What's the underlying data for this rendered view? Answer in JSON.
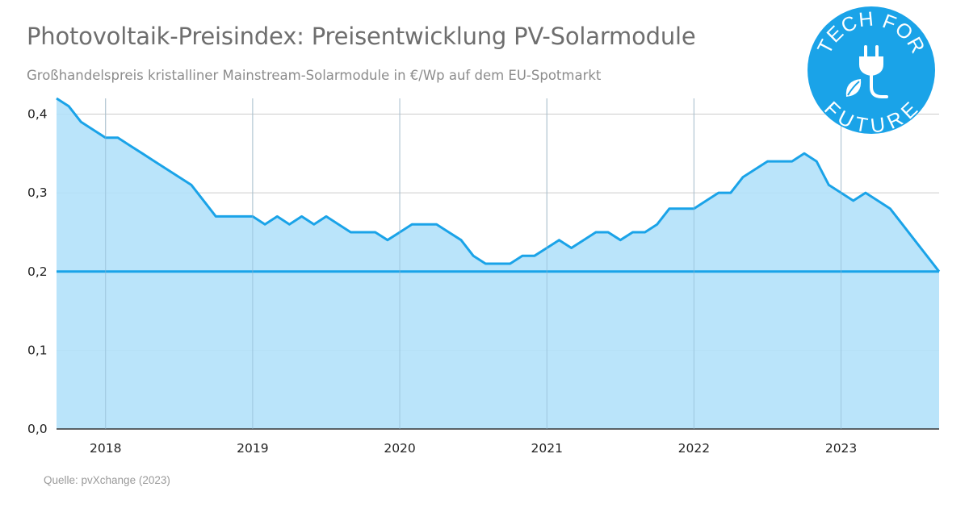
{
  "title": "Photovoltaik-Preisindex: Preisentwicklung PV-Solarmodule",
  "subtitle": "Großhandelspreis kristalliner Mainstream-Solarmodule in €/Wp auf dem EU-Spotmarkt",
  "source": "Quelle: pvXchange (2023)",
  "logo": {
    "top_text": "TECH FOR",
    "bottom_text": "FUTURE",
    "icons": [
      "plug-icon",
      "leaf-icon"
    ],
    "color": "#1aa3e8"
  },
  "colors": {
    "line": "#1aa3e8",
    "fill": "#b3e1fa",
    "grid": "#cccccc",
    "reference_line": "#1aa3e8"
  },
  "chart_data": {
    "type": "area",
    "title": "",
    "xlabel": "",
    "ylabel": "",
    "grid": true,
    "xlim": [
      "2017-09",
      "2023-09"
    ],
    "ylim": [
      0,
      0.42
    ],
    "x_ticks": [
      "2018",
      "2019",
      "2020",
      "2021",
      "2022",
      "2023"
    ],
    "y_ticks": [
      "0,0",
      "0,1",
      "0,2",
      "0,3",
      "0,4"
    ],
    "y_tick_values": [
      0,
      0.1,
      0.2,
      0.3,
      0.4
    ],
    "reference_line": 0.2,
    "x": [
      "2017-09",
      "2017-10",
      "2017-11",
      "2017-12",
      "2018-01",
      "2018-02",
      "2018-03",
      "2018-04",
      "2018-05",
      "2018-06",
      "2018-07",
      "2018-08",
      "2018-09",
      "2018-10",
      "2018-11",
      "2018-12",
      "2019-01",
      "2019-02",
      "2019-03",
      "2019-04",
      "2019-05",
      "2019-06",
      "2019-07",
      "2019-08",
      "2019-09",
      "2019-10",
      "2019-11",
      "2019-12",
      "2020-01",
      "2020-02",
      "2020-03",
      "2020-04",
      "2020-05",
      "2020-06",
      "2020-07",
      "2020-08",
      "2020-09",
      "2020-10",
      "2020-11",
      "2020-12",
      "2021-01",
      "2021-02",
      "2021-03",
      "2021-04",
      "2021-05",
      "2021-06",
      "2021-07",
      "2021-08",
      "2021-09",
      "2021-10",
      "2021-11",
      "2021-12",
      "2022-01",
      "2022-02",
      "2022-03",
      "2022-04",
      "2022-05",
      "2022-06",
      "2022-07",
      "2022-08",
      "2022-09",
      "2022-10",
      "2022-11",
      "2022-12",
      "2023-01",
      "2023-02",
      "2023-03",
      "2023-04",
      "2023-05",
      "2023-06",
      "2023-07",
      "2023-08",
      "2023-09"
    ],
    "series": [
      {
        "values": [
          0.42,
          0.41,
          0.39,
          0.38,
          0.37,
          0.37,
          0.36,
          0.35,
          0.34,
          0.33,
          0.32,
          0.31,
          0.29,
          0.27,
          0.27,
          0.27,
          0.27,
          0.26,
          0.27,
          0.26,
          0.27,
          0.26,
          0.27,
          0.26,
          0.25,
          0.25,
          0.25,
          0.24,
          0.25,
          0.26,
          0.26,
          0.26,
          0.25,
          0.24,
          0.22,
          0.21,
          0.21,
          0.21,
          0.22,
          0.22,
          0.23,
          0.24,
          0.23,
          0.24,
          0.25,
          0.25,
          0.24,
          0.25,
          0.25,
          0.26,
          0.28,
          0.28,
          0.28,
          0.29,
          0.3,
          0.3,
          0.32,
          0.33,
          0.34,
          0.34,
          0.34,
          0.35,
          0.34,
          0.31,
          0.3,
          0.29,
          0.3,
          0.29,
          0.28,
          0.26,
          0.24,
          0.22,
          0.2
        ]
      }
    ]
  }
}
